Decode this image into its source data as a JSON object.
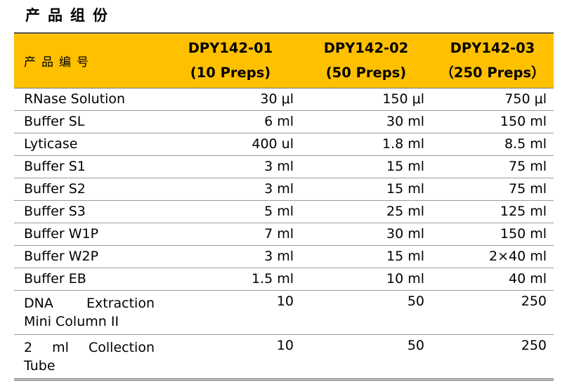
{
  "page": {
    "title": "产品组份"
  },
  "table": {
    "header_label": "产品编号",
    "columns": [
      {
        "code": "DPY142-01",
        "preps": "(10 Preps)"
      },
      {
        "code": "DPY142-02",
        "preps": "(50 Preps)"
      },
      {
        "code": "DPY142-03",
        "preps": "（250 Preps）"
      }
    ],
    "rows": [
      {
        "name": "RNase Solution",
        "v1": "30 μl",
        "v2": "150 μl",
        "v3": "750 μl"
      },
      {
        "name": "Buffer SL",
        "v1": "6  ml",
        "v2": "30  ml",
        "v3": "150  ml"
      },
      {
        "name": "Lyticase",
        "v1": "400  ul",
        "v2": "1.8  ml",
        "v3": "8.5  ml"
      },
      {
        "name": "Buffer S1",
        "v1": "3 ml",
        "v2": "15 ml",
        "v3": "75 ml"
      },
      {
        "name": "Buffer S2",
        "v1": "3 ml",
        "v2": "15 ml",
        "v3": "75 ml"
      },
      {
        "name": "Buffer S3",
        "v1": "5 ml",
        "v2": "25 ml",
        "v3": "125 ml"
      },
      {
        "name": "Buffer W1P",
        "v1": "7 ml",
        "v2": "30 ml",
        "v3": "150 ml"
      },
      {
        "name": "Buffer W2P",
        "v1": "3 ml",
        "v2": "15 ml",
        "v3": "2×40 ml"
      },
      {
        "name": "Buffer EB",
        "v1": "1.5 ml",
        "v2": "10 ml",
        "v3": "40 ml"
      },
      {
        "name": "DNA      Extraction Mini Column II",
        "v1": "10",
        "v2": "50",
        "v3": "250"
      },
      {
        "name": "2    ml    Collection Tube",
        "v1": "10",
        "v2": "50",
        "v3": "250"
      }
    ]
  }
}
